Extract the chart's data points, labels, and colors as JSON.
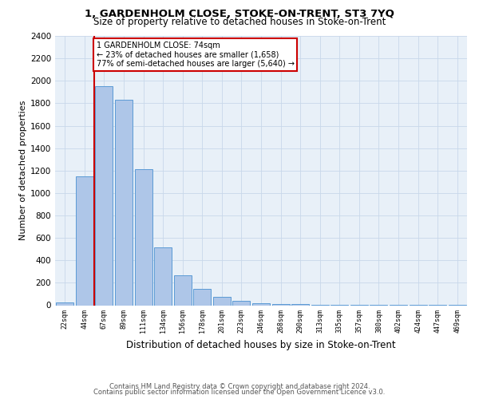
{
  "title": "1, GARDENHOLM CLOSE, STOKE-ON-TRENT, ST3 7YQ",
  "subtitle": "Size of property relative to detached houses in Stoke-on-Trent",
  "xlabel": "Distribution of detached houses by size in Stoke-on-Trent",
  "ylabel": "Number of detached properties",
  "categories": [
    "22sqm",
    "44sqm",
    "67sqm",
    "89sqm",
    "111sqm",
    "134sqm",
    "156sqm",
    "178sqm",
    "201sqm",
    "223sqm",
    "246sqm",
    "268sqm",
    "290sqm",
    "313sqm",
    "335sqm",
    "357sqm",
    "380sqm",
    "402sqm",
    "424sqm",
    "447sqm",
    "469sqm"
  ],
  "bar_heights": [
    25,
    1150,
    1950,
    1830,
    1215,
    515,
    265,
    145,
    75,
    40,
    18,
    12,
    8,
    5,
    4,
    3,
    3,
    3,
    2,
    2,
    2
  ],
  "bar_color": "#aec6e8",
  "bar_edge_color": "#5b9bd5",
  "vline_index": 1.5,
  "vline_color": "#cc0000",
  "annotation_text": "1 GARDENHOLM CLOSE: 74sqm\n← 23% of detached houses are smaller (1,658)\n77% of semi-detached houses are larger (5,640) →",
  "annotation_box_color": "#cc0000",
  "ylim": [
    0,
    2400
  ],
  "yticks": [
    0,
    200,
    400,
    600,
    800,
    1000,
    1200,
    1400,
    1600,
    1800,
    2000,
    2200,
    2400
  ],
  "grid_color": "#c8d8ea",
  "background_color": "#e8f0f8",
  "title_fontsize": 9.5,
  "subtitle_fontsize": 8.5,
  "footnote1": "Contains HM Land Registry data © Crown copyright and database right 2024.",
  "footnote2": "Contains public sector information licensed under the Open Government Licence v3.0."
}
